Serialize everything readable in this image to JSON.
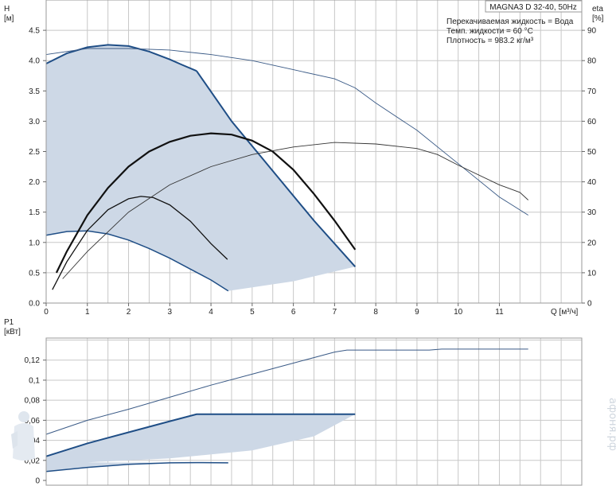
{
  "chart_data": [
    {
      "type": "line",
      "title": "MAGNA3 D 32-40, 50Hz",
      "info_lines": [
        "Перекачиваемая жидкость = Вода",
        "Темп. жидкости = 60 °C",
        "Плотность = 983.2 кг/м³"
      ],
      "ylabel_left": "H",
      "yunit_left": "[м]",
      "ylabel_right": "eta",
      "yunit_right": "[%]",
      "xlabel": "Q [м³/ч]",
      "xlim": [
        0,
        13
      ],
      "ylim_left": [
        0,
        5
      ],
      "ylim_right": [
        0,
        100
      ],
      "x_ticks": [
        "0",
        "1",
        "2",
        "3",
        "4",
        "5",
        "6",
        "7",
        "8",
        "9",
        "10",
        "11"
      ],
      "y_ticks_left": [
        "0.0",
        "0.5",
        "1.0",
        "1.5",
        "2.0",
        "2.5",
        "3.0",
        "3.5",
        "4.0",
        "4.5"
      ],
      "y_ticks_right": [
        "0",
        "10",
        "20",
        "30",
        "40",
        "50",
        "60",
        "70",
        "80",
        "90"
      ],
      "grid": true,
      "colors": {
        "region_fill": "#cdd8e6",
        "region_edge": "#1f4e86",
        "curve": "#111111",
        "eta_line": "#3a5a86"
      },
      "operating_region": {
        "upper_left_x": [
          0,
          0.5,
          1.0,
          1.5,
          2.0,
          2.5,
          3.0,
          3.3,
          3.65
        ],
        "upper_left_y": [
          3.95,
          4.12,
          4.22,
          4.26,
          4.24,
          4.15,
          4.02,
          3.93,
          3.83
        ],
        "right_boundary_x": [
          3.65,
          4.5,
          5.5,
          6.5,
          7.5
        ],
        "right_boundary_y": [
          3.83,
          3.0,
          2.18,
          1.36,
          0.6
        ],
        "bottom_x": [
          0,
          0.5,
          1.0,
          1.5,
          2.0,
          2.5,
          3.0,
          3.5,
          4.0,
          4.42
        ],
        "bottom_y": [
          1.12,
          1.18,
          1.19,
          1.14,
          1.04,
          0.9,
          0.74,
          0.56,
          0.38,
          0.2
        ],
        "min_load_x": [
          4.42,
          6.0,
          7.5
        ],
        "min_load_y": [
          0.2,
          0.36,
          0.6
        ]
      },
      "series": [
        {
          "x": [
            0.25,
            0.5,
            1.0,
            1.5,
            2.0,
            2.5,
            3.0,
            3.5,
            4.0,
            4.5,
            5.0,
            5.5,
            6.0,
            6.5,
            7.0,
            7.5
          ],
          "y": [
            0.5,
            0.85,
            1.45,
            1.9,
            2.25,
            2.5,
            2.66,
            2.76,
            2.8,
            2.78,
            2.68,
            2.5,
            2.2,
            1.8,
            1.36,
            0.88
          ]
        },
        {
          "x": [
            0.15,
            0.5,
            1.0,
            1.5,
            2.0,
            2.3,
            2.6,
            3.0,
            3.5,
            4.0,
            4.4
          ],
          "y": [
            0.22,
            0.68,
            1.2,
            1.54,
            1.72,
            1.76,
            1.74,
            1.62,
            1.35,
            0.98,
            0.72
          ]
        },
        {
          "x": [
            0,
            1,
            2,
            3,
            4,
            5,
            6,
            7,
            7.5,
            8,
            9,
            10,
            11,
            11.7
          ],
          "y": [
            82,
            84,
            84,
            83.5,
            82,
            80,
            77,
            74,
            71,
            66,
            57,
            46,
            35,
            29
          ]
        },
        {
          "x": [
            0.4,
            1,
            2,
            3,
            4,
            5,
            6,
            7,
            8,
            9,
            9.5,
            10,
            11,
            11.5,
            11.7
          ],
          "y": [
            8,
            17,
            30,
            39,
            45,
            49,
            51.5,
            53,
            52.5,
            51,
            49,
            45.5,
            39,
            36.5,
            34
          ]
        }
      ]
    },
    {
      "type": "line",
      "ylabel_left": "P1",
      "yunit_left": "[кВт]",
      "xlim": [
        0,
        13
      ],
      "ylim": [
        0,
        0.142
      ],
      "y_ticks": [
        "0",
        "0,02",
        "0,04",
        "0,06",
        "0,08",
        "0,1",
        "0,12"
      ],
      "grid": true,
      "colors": {
        "region_fill": "#cdd8e6",
        "region_edge": "#1f4e86",
        "max_line": "#3a5a86"
      },
      "operating_region": {
        "top_x": [
          0,
          1,
          2,
          3,
          3.65,
          5,
          6,
          7.5
        ],
        "top_y": [
          0.024,
          0.037,
          0.048,
          0.059,
          0.066,
          0.066,
          0.066,
          0.066
        ],
        "bottom_x": [
          0,
          1,
          2,
          3,
          3.65,
          4.42
        ],
        "bottom_y": [
          0.009,
          0.013,
          0.016,
          0.0175,
          0.0178,
          0.0175
        ],
        "min_load_x": [
          1.0,
          3.0,
          5.0,
          6.5,
          7.5
        ],
        "min_load_y": [
          0.018,
          0.022,
          0.03,
          0.044,
          0.066
        ]
      },
      "series": [
        {
          "x": [
            0,
            1,
            2,
            3,
            4,
            5,
            6,
            7,
            7.3,
            8,
            9.3,
            9.6,
            10,
            11,
            11.7
          ],
          "y": [
            0.046,
            0.06,
            0.071,
            0.083,
            0.095,
            0.106,
            0.117,
            0.128,
            0.13,
            0.13,
            0.13,
            0.131,
            0.131,
            0.131,
            0.131
          ]
        }
      ]
    }
  ],
  "watermark": "афоня.рф"
}
